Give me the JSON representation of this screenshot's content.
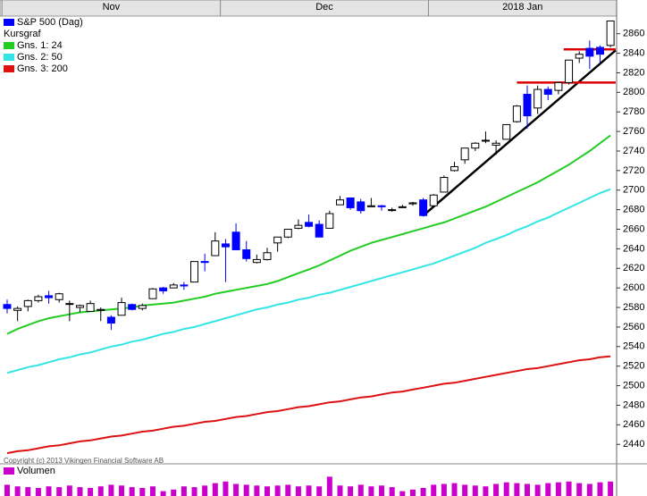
{
  "chart_data": {
    "type": "candlestick",
    "title": "S&P 500 (Dag)",
    "legend_heading": "Kursgraf",
    "copyright": "Copyright (c) 2013 Vikingen Financial Software AB",
    "categories": [
      "Nov",
      null,
      null,
      null,
      null,
      null,
      null,
      null,
      null,
      null,
      null,
      null,
      null,
      null,
      null,
      null,
      null,
      null,
      null,
      null,
      null,
      "Dec",
      null,
      null,
      null,
      null,
      null,
      null,
      null,
      null,
      null,
      null,
      null,
      null,
      null,
      null,
      null,
      null,
      null,
      null,
      null,
      "2018 Jan",
      null,
      null,
      null,
      null,
      null,
      null,
      null,
      null,
      null,
      null,
      null,
      null,
      null,
      null,
      null,
      null,
      null
    ],
    "open": [
      2583,
      2577,
      2581,
      2587,
      2592,
      2588,
      2584,
      2580,
      2576,
      2577,
      2570,
      2572,
      2583,
      2579,
      2589,
      2600,
      2600,
      2603,
      2606,
      2627,
      2633,
      2645,
      2657,
      2639,
      2626,
      2629,
      2646,
      2652,
      2661,
      2667,
      2665,
      2661,
      2685,
      2692,
      2688,
      2683,
      2684,
      2680,
      2683,
      2686,
      2690,
      2684,
      2698,
      2720,
      2731,
      2743,
      2751,
      2746,
      2752,
      2770,
      2798,
      2784,
      2803,
      2802,
      2810,
      2835,
      2845,
      2846,
      2848
    ],
    "high": [
      2588,
      2581,
      2588,
      2593,
      2597,
      2595,
      2587,
      2583,
      2587,
      2580,
      2572,
      2590,
      2584,
      2584,
      2600,
      2601,
      2605,
      2606,
      2627,
      2635,
      2657,
      2650,
      2666,
      2648,
      2634,
      2641,
      2652,
      2660,
      2670,
      2675,
      2669,
      2679,
      2694,
      2692,
      2691,
      2692,
      2685,
      2682,
      2685,
      2688,
      2692,
      2696,
      2715,
      2729,
      2743,
      2749,
      2760,
      2751,
      2767,
      2787,
      2807,
      2807,
      2806,
      2810,
      2833,
      2842,
      2853,
      2848,
      2873
    ],
    "low": [
      2574,
      2566,
      2576,
      2585,
      2584,
      2585,
      2566,
      2575,
      2576,
      2566,
      2557,
      2572,
      2577,
      2577,
      2589,
      2594,
      2600,
      2598,
      2606,
      2617,
      2633,
      2606,
      2639,
      2627,
      2625,
      2628,
      2637,
      2651,
      2660,
      2662,
      2652,
      2661,
      2685,
      2680,
      2676,
      2683,
      2679,
      2678,
      2682,
      2684,
      2673,
      2683,
      2698,
      2719,
      2727,
      2740,
      2748,
      2736,
      2752,
      2769,
      2763,
      2778,
      2792,
      2798,
      2808,
      2830,
      2824,
      2830,
      2846
    ],
    "close": [
      2579,
      2579,
      2587,
      2591,
      2590,
      2594,
      2584,
      2582,
      2584,
      2578,
      2564,
      2585,
      2578,
      2582,
      2599,
      2597,
      2603,
      2602,
      2627,
      2626,
      2648,
      2642,
      2639,
      2630,
      2629,
      2636,
      2652,
      2660,
      2664,
      2663,
      2652,
      2676,
      2690,
      2682,
      2679,
      2684,
      2683,
      2680,
      2683,
      2687,
      2674,
      2695,
      2713,
      2724,
      2743,
      2748,
      2751,
      2748,
      2767,
      2786,
      2776,
      2803,
      2798,
      2810,
      2833,
      2839,
      2837,
      2839,
      2873
    ],
    "color": "#0000ff",
    "up_color": "#ffffff",
    "down_color": "#0000ff",
    "series": [
      {
        "name": "Gns. 1: 24",
        "color": "#22cc22",
        "values": [
          2553,
          2558,
          2562,
          2566,
          2569,
          2571,
          2573,
          2575,
          2576,
          2577,
          2578,
          2579,
          2580,
          2582,
          2583,
          2584,
          2585,
          2587,
          2589,
          2591,
          2594,
          2596,
          2598,
          2600,
          2602,
          2604,
          2607,
          2611,
          2615,
          2619,
          2623,
          2628,
          2633,
          2638,
          2642,
          2646,
          2649,
          2652,
          2655,
          2658,
          2661,
          2664,
          2667,
          2671,
          2675,
          2679,
          2683,
          2688,
          2693,
          2698,
          2703,
          2708,
          2714,
          2720,
          2726,
          2733,
          2740,
          2748,
          2756
        ]
      },
      {
        "name": "Gns. 2: 50",
        "color": "#33e5e5",
        "values": [
          2513,
          2516,
          2519,
          2521,
          2524,
          2527,
          2529,
          2532,
          2534,
          2537,
          2540,
          2542,
          2545,
          2547,
          2550,
          2553,
          2555,
          2558,
          2560,
          2563,
          2566,
          2569,
          2572,
          2575,
          2578,
          2580,
          2583,
          2585,
          2588,
          2590,
          2593,
          2595,
          2598,
          2601,
          2604,
          2607,
          2610,
          2613,
          2616,
          2619,
          2622,
          2625,
          2629,
          2633,
          2637,
          2641,
          2646,
          2650,
          2654,
          2659,
          2663,
          2668,
          2672,
          2677,
          2682,
          2687,
          2692,
          2697,
          2701
        ]
      },
      {
        "name": "Gns. 3: 200",
        "color": "#dd1111",
        "values": [
          2431,
          2433,
          2434,
          2436,
          2438,
          2439,
          2441,
          2443,
          2444,
          2446,
          2448,
          2449,
          2451,
          2453,
          2454,
          2456,
          2458,
          2459,
          2461,
          2463,
          2464,
          2466,
          2468,
          2469,
          2471,
          2473,
          2474,
          2476,
          2478,
          2479,
          2481,
          2483,
          2484,
          2486,
          2488,
          2489,
          2491,
          2493,
          2494,
          2496,
          2498,
          2500,
          2502,
          2503,
          2505,
          2507,
          2509,
          2511,
          2513,
          2515,
          2517,
          2518,
          2520,
          2522,
          2524,
          2526,
          2527,
          2529,
          2530
        ]
      }
    ],
    "trend_lines": [
      {
        "color": "#000000",
        "x": [
          40,
          58.5
        ],
        "y": [
          2674,
          2843
        ]
      },
      {
        "color": "#dd0000",
        "x": [
          49,
          58.5
        ],
        "y": [
          2810,
          2810
        ]
      },
      {
        "color": "#dd0000",
        "x": [
          53.5,
          58.5
        ],
        "y": [
          2844,
          2844
        ]
      }
    ],
    "ylim": [
      2421,
      2878
    ],
    "yticks": [
      2440,
      2460,
      2480,
      2500,
      2520,
      2540,
      2560,
      2580,
      2600,
      2620,
      2640,
      2660,
      2680,
      2700,
      2720,
      2740,
      2760,
      2780,
      2800,
      2820,
      2840,
      2860
    ],
    "volume": {
      "name": "Volumen",
      "color": "#cc00cc",
      "ylim": [
        0,
        40
      ],
      "values": [
        14,
        12,
        11,
        10,
        12,
        11,
        13,
        11,
        10,
        12,
        14,
        13,
        11,
        10,
        12,
        6,
        8,
        12,
        11,
        13,
        16,
        18,
        15,
        14,
        13,
        12,
        13,
        14,
        12,
        13,
        12,
        24,
        13,
        12,
        14,
        12,
        13,
        11,
        6,
        8,
        10,
        14,
        15,
        16,
        14,
        13,
        12,
        15,
        17,
        16,
        15,
        14,
        16,
        17,
        18,
        16,
        15,
        17,
        18
      ]
    }
  }
}
